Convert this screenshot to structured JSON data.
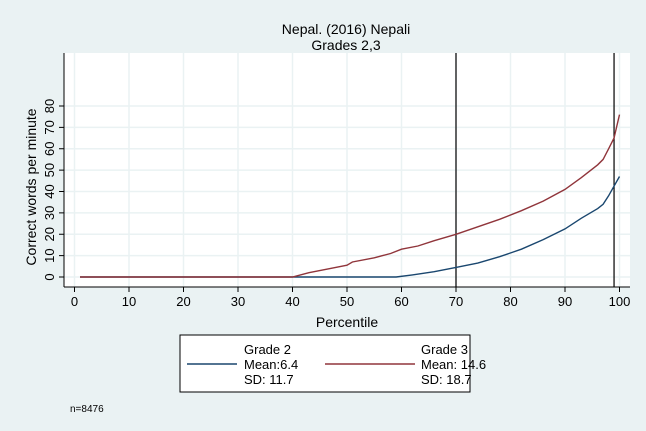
{
  "chart_data": {
    "type": "line",
    "title": "Nepal. (2016) Nepali",
    "subtitle": "Grades 2,3",
    "xlabel": "Percentile",
    "ylabel": "Correct words per minute",
    "xlim": [
      0,
      100
    ],
    "ylim": [
      0,
      80
    ],
    "xticks": [
      0,
      10,
      20,
      30,
      40,
      50,
      60,
      70,
      80,
      90,
      100
    ],
    "yticks": [
      0,
      10,
      20,
      30,
      40,
      50,
      60,
      70,
      80
    ],
    "grid": true,
    "vlines": [
      70,
      99
    ],
    "series": [
      {
        "name": "Grade 2",
        "color": "#1a476f",
        "x": [
          1,
          59,
          62,
          66,
          70,
          74,
          78,
          82,
          86,
          90,
          93,
          96,
          97,
          98,
          99,
          100
        ],
        "y": [
          0,
          0,
          1,
          2.5,
          4.5,
          6.5,
          9.5,
          13,
          17.5,
          22.5,
          27.5,
          32,
          34,
          38,
          42.5,
          47
        ]
      },
      {
        "name": "Grade 3",
        "color": "#90353b",
        "x": [
          1,
          40,
          43,
          47,
          50,
          51,
          55,
          58,
          60,
          63,
          66,
          70,
          74,
          78,
          82,
          86,
          90,
          93,
          96,
          97,
          98,
          99,
          100
        ],
        "y": [
          0,
          0,
          2,
          4,
          5.5,
          7,
          9,
          11,
          13,
          14.5,
          17,
          20,
          23.5,
          27,
          31,
          35.5,
          41,
          46.5,
          52.5,
          55,
          60,
          65,
          76
        ]
      }
    ],
    "legend": {
      "placement": "bottom",
      "entries": [
        {
          "label": "Grade 2",
          "mean": "Mean:6.4",
          "sd": "SD: 11.7"
        },
        {
          "label": "Grade 3",
          "mean": "Mean: 14.6",
          "sd": "SD: 18.7"
        }
      ]
    },
    "note": "n=8476"
  }
}
